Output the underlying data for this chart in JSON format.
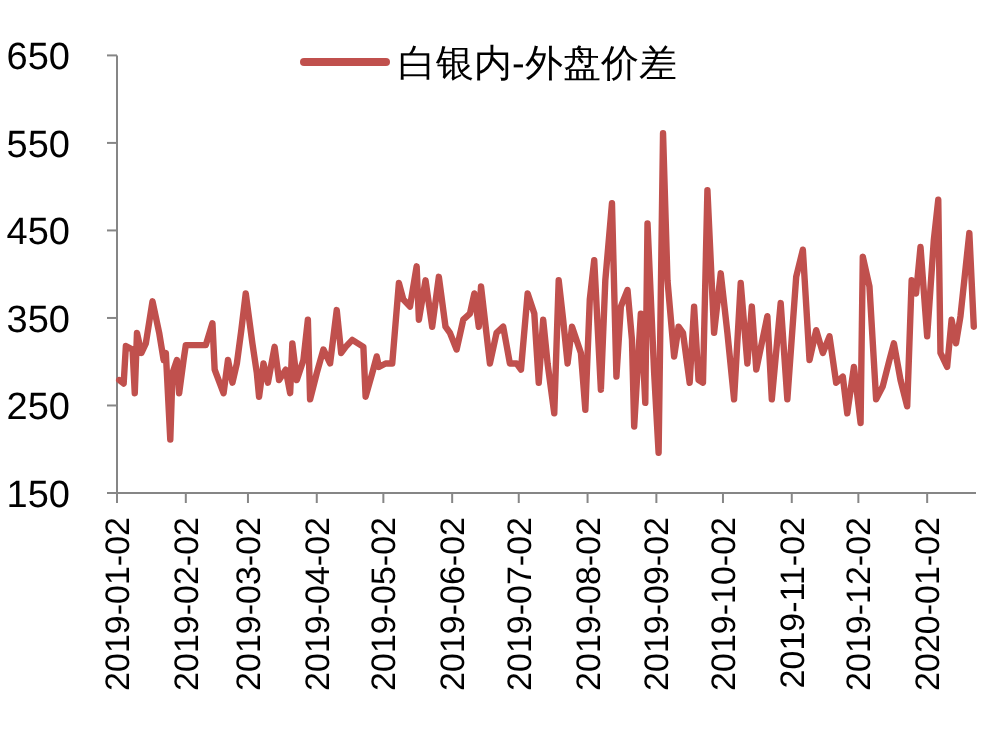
{
  "chart_data": {
    "type": "line",
    "legend": "top",
    "x": [
      "2019-01-03",
      "2019-01-05",
      "2019-01-06",
      "2019-01-09",
      "2019-01-10",
      "2019-01-11",
      "2019-01-13",
      "2019-01-15",
      "2019-01-18",
      "2019-01-21",
      "2019-01-23",
      "2019-01-24",
      "2019-01-26",
      "2019-01-27",
      "2019-01-29",
      "2019-01-30",
      "2019-02-01",
      "2019-02-02",
      "2019-02-11",
      "2019-02-14",
      "2019-02-15",
      "2019-02-19",
      "2019-02-21",
      "2019-02-23",
      "2019-02-25",
      "2019-02-27",
      "2019-03-01",
      "2019-03-04",
      "2019-03-06",
      "2019-03-07",
      "2019-03-09",
      "2019-03-11",
      "2019-03-14",
      "2019-03-16",
      "2019-03-19",
      "2019-03-21",
      "2019-03-22",
      "2019-03-24",
      "2019-03-27",
      "2019-03-29",
      "2019-03-30",
      "2019-04-02",
      "2019-04-05",
      "2019-04-08",
      "2019-04-11",
      "2019-04-13",
      "2019-04-15",
      "2019-04-18",
      "2019-04-23",
      "2019-04-24",
      "2019-04-27",
      "2019-04-29",
      "2019-04-30",
      "2019-05-03",
      "2019-05-06",
      "2019-05-09",
      "2019-05-11",
      "2019-05-14",
      "2019-05-17",
      "2019-05-18",
      "2019-05-21",
      "2019-05-24",
      "2019-05-27",
      "2019-05-30",
      "2019-06-01",
      "2019-06-04",
      "2019-06-07",
      "2019-06-10",
      "2019-06-12",
      "2019-06-14",
      "2019-06-15",
      "2019-06-19",
      "2019-06-22",
      "2019-06-25",
      "2019-06-28",
      "2019-07-01",
      "2019-07-03",
      "2019-07-06",
      "2019-07-09",
      "2019-07-11",
      "2019-07-13",
      "2019-07-15",
      "2019-07-18",
      "2019-07-20",
      "2019-07-22",
      "2019-07-24",
      "2019-07-26",
      "2019-07-30",
      "2019-08-01",
      "2019-08-03",
      "2019-08-05",
      "2019-08-08",
      "2019-08-10",
      "2019-08-13",
      "2019-08-15",
      "2019-08-17",
      "2019-08-20",
      "2019-08-22",
      "2019-08-23",
      "2019-08-26",
      "2019-08-28",
      "2019-08-29",
      "2019-09-01",
      "2019-09-03",
      "2019-09-05",
      "2019-09-07",
      "2019-09-10",
      "2019-09-12",
      "2019-09-14",
      "2019-09-17",
      "2019-09-19",
      "2019-09-21",
      "2019-09-23",
      "2019-09-25",
      "2019-09-28",
      "2019-10-01",
      "2019-10-04",
      "2019-10-07",
      "2019-10-10",
      "2019-10-13",
      "2019-10-15",
      "2019-10-17",
      "2019-10-22",
      "2019-10-24",
      "2019-10-28",
      "2019-10-31",
      "2019-11-04",
      "2019-11-07",
      "2019-11-10",
      "2019-11-13",
      "2019-11-16",
      "2019-11-19",
      "2019-11-22",
      "2019-11-25",
      "2019-11-27",
      "2019-11-30",
      "2019-12-03",
      "2019-12-04",
      "2019-12-07",
      "2019-12-10",
      "2019-12-13",
      "2019-12-16",
      "2019-12-18",
      "2019-12-21",
      "2019-12-24",
      "2019-12-26",
      "2019-12-28",
      "2019-12-30",
      "2020-01-02",
      "2020-01-05",
      "2020-01-07",
      "2020-01-08",
      "2020-01-11",
      "2020-01-13",
      "2020-01-15",
      "2020-01-17",
      "2020-01-21",
      "2020-01-23"
    ],
    "series": [
      {
        "name": "白银内-外盘价差",
        "color": "#c0504d",
        "values": [
          279,
          275,
          318,
          314,
          264,
          333,
          310,
          321,
          369,
          333,
          302,
          310,
          211,
          287,
          302,
          264,
          302,
          319,
          319,
          344,
          291,
          264,
          302,
          276,
          298,
          336,
          378,
          321,
          287,
          260,
          298,
          276,
          317,
          279,
          291,
          264,
          321,
          279,
          302,
          348,
          257,
          287,
          314,
          298,
          359,
          310,
          317,
          325,
          317,
          260,
          287,
          306,
          294,
          298,
          298,
          390,
          371,
          363,
          409,
          348,
          393,
          340,
          397,
          340,
          333,
          314,
          348,
          355,
          378,
          340,
          386,
          298,
          333,
          340,
          298,
          298,
          291,
          378,
          355,
          276,
          348,
          298,
          241,
          393,
          348,
          298,
          340,
          310,
          245,
          371,
          416,
          268,
          393,
          481,
          283,
          363,
          382,
          325,
          226,
          355,
          253,
          458,
          287,
          196,
          561,
          393,
          306,
          340,
          333,
          276,
          363,
          279,
          276,
          496,
          333,
          401,
          333,
          257,
          390,
          298,
          363,
          291,
          352,
          257,
          367,
          257,
          397,
          428,
          302,
          336,
          310,
          329,
          276,
          283,
          241,
          294,
          230,
          420,
          386,
          257,
          272,
          302,
          321,
          279,
          249,
          393,
          378,
          431,
          329,
          439,
          485,
          310,
          294,
          348,
          321,
          352,
          447,
          340
        ]
      }
    ],
    "xlim": [
      "2019-01-02",
      "2020-01-24"
    ],
    "xticks": [
      "2019-01-02",
      "2019-02-02",
      "2019-03-02",
      "2019-04-02",
      "2019-05-02",
      "2019-06-02",
      "2019-07-02",
      "2019-08-02",
      "2019-09-02",
      "2019-10-02",
      "2019-11-02",
      "2019-12-02",
      "2020-01-02"
    ],
    "ylim": [
      150,
      650
    ],
    "yticks": [
      150,
      250,
      350,
      450,
      550,
      650
    ]
  }
}
